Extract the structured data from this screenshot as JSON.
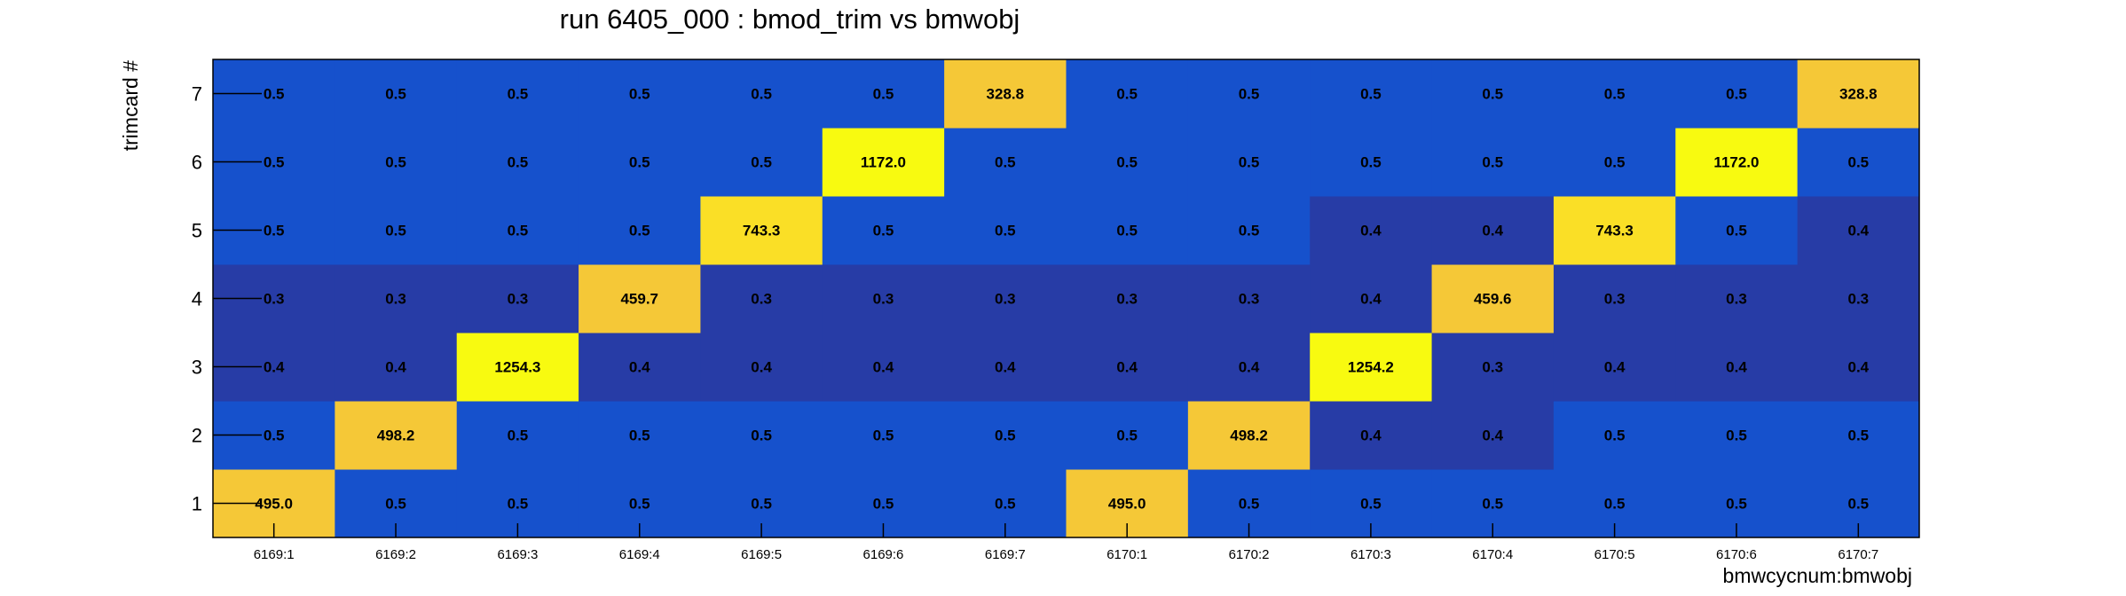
{
  "chart_data": {
    "type": "heatmap",
    "title": "run 6405_000 : bmod_trim vs bmwobj",
    "xlabel": "bmwcycnum:bmwobj",
    "ylabel": "trimcard #",
    "categories": [
      "6169:1",
      "6169:2",
      "6169:3",
      "6169:4",
      "6169:5",
      "6169:6",
      "6169:7",
      "6170:1",
      "6170:2",
      "6170:3",
      "6170:4",
      "6170:5",
      "6170:6",
      "6170:7"
    ],
    "y_categories": [
      "1",
      "2",
      "3",
      "4",
      "5",
      "6",
      "7"
    ],
    "rows": [
      {
        "y": "1",
        "values": [
          495.0,
          0.5,
          0.5,
          0.5,
          0.5,
          0.5,
          0.5,
          495.0,
          0.5,
          0.5,
          0.5,
          0.5,
          0.5,
          0.5
        ],
        "labels": [
          "495.0",
          "0.5",
          "0.5",
          "0.5",
          "0.5",
          "0.5",
          "0.5",
          "495.0",
          "0.5",
          "0.5",
          "0.5",
          "0.5",
          "0.5",
          "0.5"
        ]
      },
      {
        "y": "2",
        "values": [
          0.5,
          498.2,
          0.5,
          0.5,
          0.5,
          0.5,
          0.5,
          0.45,
          498.2,
          0.4,
          0.4,
          0.5,
          0.5,
          0.5
        ],
        "labels": [
          "0.5",
          "498.2",
          "0.5",
          "0.5",
          "0.5",
          "0.5",
          "0.5",
          "0.5",
          "498.2",
          "0.4",
          "0.4",
          "0.5",
          "0.5",
          "0.5"
        ]
      },
      {
        "y": "3",
        "values": [
          0.4,
          0.4,
          1254.3,
          0.4,
          0.4,
          0.4,
          0.4,
          0.4,
          0.4,
          1254.2,
          0.3,
          0.4,
          0.4,
          0.4
        ],
        "labels": [
          "0.4",
          "0.4",
          "1254.3",
          "0.4",
          "0.4",
          "0.4",
          "0.4",
          "0.4",
          "0.4",
          "1254.2",
          "0.3",
          "0.4",
          "0.4",
          "0.4"
        ]
      },
      {
        "y": "4",
        "values": [
          0.3,
          0.3,
          0.3,
          459.7,
          0.3,
          0.3,
          0.3,
          0.3,
          0.3,
          0.4,
          459.6,
          0.3,
          0.3,
          0.3
        ],
        "labels": [
          "0.3",
          "0.3",
          "0.3",
          "459.7",
          "0.3",
          "0.3",
          "0.3",
          "0.3",
          "0.3",
          "0.4",
          "459.6",
          "0.3",
          "0.3",
          "0.3"
        ]
      },
      {
        "y": "5",
        "values": [
          0.5,
          0.5,
          0.5,
          0.5,
          743.3,
          0.45,
          0.5,
          0.45,
          0.5,
          0.4,
          0.4,
          743.3,
          0.5,
          0.4
        ],
        "labels": [
          "0.5",
          "0.5",
          "0.5",
          "0.5",
          "743.3",
          "0.5",
          "0.5",
          "0.5",
          "0.5",
          "0.4",
          "0.4",
          "743.3",
          "0.5",
          "0.4"
        ]
      },
      {
        "y": "6",
        "values": [
          0.5,
          0.5,
          0.5,
          0.5,
          0.5,
          1172.0,
          0.5,
          0.5,
          0.5,
          0.5,
          0.5,
          0.5,
          1172.0,
          0.5
        ],
        "labels": [
          "0.5",
          "0.5",
          "0.5",
          "0.5",
          "0.5",
          "1172.0",
          "0.5",
          "0.5",
          "0.5",
          "0.5",
          "0.5",
          "0.5",
          "1172.0",
          "0.5"
        ]
      },
      {
        "y": "7",
        "values": [
          0.5,
          0.5,
          0.5,
          0.5,
          0.5,
          0.5,
          328.8,
          0.5,
          0.5,
          0.5,
          0.5,
          0.5,
          0.5,
          328.8
        ],
        "labels": [
          "0.5",
          "0.5",
          "0.5",
          "0.5",
          "0.5",
          "0.5",
          "328.8",
          "0.5",
          "0.5",
          "0.5",
          "0.5",
          "0.5",
          "0.5",
          "328.8"
        ]
      }
    ],
    "colors": {
      "low_dark": "#273ca6",
      "low": "#1651cc",
      "mid": "#f5c837",
      "high_mid": "#fadf26",
      "high": "#f8fa10",
      "frame": "#000000"
    },
    "grid": false,
    "legend": "none"
  }
}
